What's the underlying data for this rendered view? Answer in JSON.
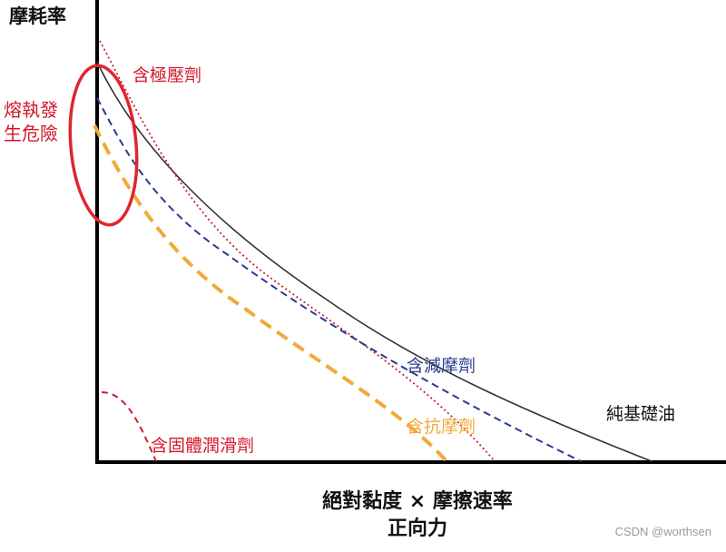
{
  "axes": {
    "y_title": "摩耗率",
    "x_title_line1": "絕對黏度 × 摩擦速率",
    "x_title_line2": "正向力"
  },
  "curves": {
    "base_oil": {
      "label": "純基礎油",
      "color": "#333333",
      "style": "solid"
    },
    "extreme_pressure": {
      "label": "含極壓劑",
      "color": "#c8202f",
      "style": "dotted"
    },
    "friction_reducer": {
      "label": "含減摩劑",
      "color": "#2b3a8f",
      "style": "dashed"
    },
    "anti_wear": {
      "label": "含抗摩劑",
      "color": "#f2a93b",
      "style": "thick-dashed"
    },
    "solid_lubricant": {
      "label": "含固體潤滑劑",
      "color": "#c8202f",
      "style": "dashed"
    }
  },
  "annotation": {
    "line1": "熔執發",
    "line2": "生危險",
    "color": "#e0252f"
  },
  "watermark": "CSDN @worthsen"
}
